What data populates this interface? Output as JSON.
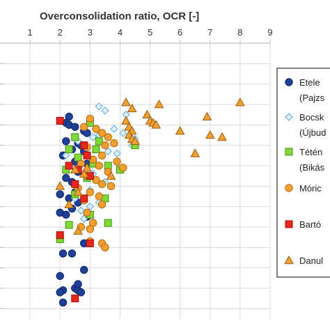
{
  "chart_data": {
    "type": "scatter",
    "title": "",
    "xlabel": "Overconsolidation ratio, OCR [-]",
    "x_axis_position": "top",
    "xlim": [
      0,
      9
    ],
    "xticks": [
      "1",
      "2",
      "3",
      "4",
      "5",
      "6",
      "7",
      "8",
      "9"
    ],
    "ylabel": "",
    "grid": true,
    "legend_position": "right",
    "colors": {
      "grid": "#d9d9d9",
      "axis": "#bfbfbf",
      "legend_border": "#000000"
    },
    "series": [
      {
        "name": "Etele (Pajzs...",
        "marker": "circle",
        "color": "#1f3f99",
        "edge": "#0e2466",
        "points": [
          [
            2.3,
            3.6
          ],
          [
            2.2,
            3.9
          ],
          [
            2.3,
            4.0
          ],
          [
            2.5,
            4.1
          ],
          [
            2.8,
            4.3
          ],
          [
            2.9,
            4.4
          ],
          [
            2.2,
            4.8
          ],
          [
            2.6,
            4.9
          ],
          [
            2.7,
            5.0
          ],
          [
            2.4,
            5.2
          ],
          [
            2.8,
            5.3
          ],
          [
            2.1,
            5.5
          ],
          [
            2.5,
            5.8
          ],
          [
            2.9,
            5.9
          ],
          [
            2.6,
            6.3
          ],
          [
            2.2,
            6.6
          ],
          [
            2.4,
            6.8
          ],
          [
            2.5,
            7.3
          ],
          [
            2.0,
            7.4
          ],
          [
            2.3,
            7.6
          ],
          [
            2.6,
            7.8
          ],
          [
            2.4,
            8.1
          ],
          [
            2.0,
            8.3
          ],
          [
            2.2,
            8.4
          ],
          [
            2.9,
            8.5
          ],
          [
            2.8,
            9.8
          ],
          [
            2.4,
            10.3
          ],
          [
            2.1,
            10.3
          ],
          [
            2.0,
            11.4
          ],
          [
            2.8,
            11.1
          ],
          [
            2.1,
            12.1
          ],
          [
            2.5,
            12.0
          ],
          [
            2.6,
            12.1
          ],
          [
            2.0,
            12.2
          ],
          [
            2.1,
            12.7
          ],
          [
            2.7,
            12.2
          ],
          [
            2.6,
            11.8
          ]
        ]
      },
      {
        "name": "Bocsk... (Újbuda...",
        "marker": "diamond",
        "color": "#dceffb",
        "edge": "#5aa9d6",
        "points": [
          [
            3.3,
            3.1
          ],
          [
            3.5,
            3.3
          ],
          [
            4.2,
            3.5
          ],
          [
            3.8,
            4.2
          ],
          [
            3.3,
            4.5
          ],
          [
            3.1,
            4.6
          ],
          [
            2.6,
            4.8
          ],
          [
            2.9,
            5.1
          ],
          [
            3.6,
            5.3
          ],
          [
            3.9,
            5.4
          ],
          [
            4.4,
            5.0
          ],
          [
            2.2,
            5.5
          ],
          [
            3.1,
            6.4
          ],
          [
            3.5,
            6.8
          ],
          [
            3.0,
            7.2
          ],
          [
            2.5,
            7.6
          ],
          [
            3.3,
            7.8
          ],
          [
            3.0,
            8.0
          ],
          [
            2.7,
            8.2
          ],
          [
            2.8,
            8.6
          ],
          [
            4.1,
            4.4
          ],
          [
            4.5,
            4.7
          ]
        ]
      },
      {
        "name": "Tétén... (Bikás...",
        "marker": "square",
        "color": "#80d935",
        "edge": "#3e8f12",
        "points": [
          [
            3.0,
            3.9
          ],
          [
            2.5,
            4.6
          ],
          [
            3.3,
            4.8
          ],
          [
            4.5,
            5.0
          ],
          [
            2.3,
            5.2
          ],
          [
            2.6,
            5.6
          ],
          [
            3.1,
            5.9
          ],
          [
            3.6,
            6.0
          ],
          [
            2.2,
            6.2
          ],
          [
            2.9,
            6.6
          ],
          [
            2.5,
            7.4
          ],
          [
            3.5,
            7.6
          ],
          [
            4.0,
            6.2
          ],
          [
            3.0,
            8.4
          ],
          [
            3.6,
            8.8
          ],
          [
            2.3,
            8.9
          ],
          [
            2.0,
            9.6
          ],
          [
            3.2,
            5.2
          ]
        ]
      },
      {
        "name": "Móric...",
        "marker": "circle",
        "color": "#f0a030",
        "edge": "#b86a0d",
        "points": [
          [
            3.0,
            3.7
          ],
          [
            2.8,
            4.1
          ],
          [
            3.2,
            4.2
          ],
          [
            3.4,
            4.4
          ],
          [
            3.6,
            4.6
          ],
          [
            3.5,
            5.0
          ],
          [
            2.9,
            5.1
          ],
          [
            3.8,
            4.9
          ],
          [
            3.4,
            5.5
          ],
          [
            3.1,
            5.7
          ],
          [
            2.7,
            5.9
          ],
          [
            3.9,
            5.8
          ],
          [
            3.3,
            6.0
          ],
          [
            4.1,
            6.1
          ],
          [
            3.6,
            6.3
          ],
          [
            2.9,
            6.5
          ],
          [
            3.2,
            6.7
          ],
          [
            3.4,
            6.9
          ],
          [
            2.6,
            7.1
          ],
          [
            3.7,
            7.0
          ],
          [
            3.0,
            7.3
          ],
          [
            3.3,
            7.5
          ],
          [
            2.8,
            7.7
          ],
          [
            3.4,
            7.9
          ],
          [
            2.9,
            8.3
          ],
          [
            3.1,
            8.8
          ],
          [
            2.7,
            9.0
          ],
          [
            3.0,
            9.1
          ],
          [
            3.0,
            9.7
          ],
          [
            3.4,
            9.8
          ],
          [
            3.5,
            10.0
          ]
        ]
      },
      {
        "name": "Bartó...",
        "marker": "square",
        "color": "#e8261c",
        "edge": "#9e0f08",
        "points": [
          [
            2.0,
            3.8
          ],
          [
            2.8,
            5.0
          ],
          [
            2.9,
            5.5
          ],
          [
            2.3,
            6.0
          ],
          [
            2.6,
            6.2
          ],
          [
            3.0,
            6.5
          ],
          [
            2.5,
            6.9
          ],
          [
            2.8,
            7.6
          ],
          [
            2.0,
            9.4
          ],
          [
            3.0,
            9.8
          ],
          [
            2.5,
            12.5
          ]
        ]
      },
      {
        "name": "Danul...",
        "marker": "triangle",
        "color": "#f0a030",
        "edge": "#9c5a10",
        "points": [
          [
            4.2,
            2.9
          ],
          [
            5.3,
            3.0
          ],
          [
            8.0,
            2.9
          ],
          [
            4.4,
            3.2
          ],
          [
            4.9,
            3.5
          ],
          [
            6.9,
            3.6
          ],
          [
            4.2,
            3.8
          ],
          [
            5.0,
            3.8
          ],
          [
            5.1,
            3.9
          ],
          [
            5.2,
            4.0
          ],
          [
            4.3,
            4.1
          ],
          [
            4.4,
            4.3
          ],
          [
            6.0,
            4.3
          ],
          [
            7.0,
            4.5
          ],
          [
            7.4,
            4.6
          ],
          [
            4.3,
            4.5
          ],
          [
            4.4,
            4.7
          ],
          [
            4.5,
            4.8
          ],
          [
            2.5,
            6.2
          ],
          [
            2.8,
            6.4
          ],
          [
            2.9,
            6.1
          ],
          [
            2.0,
            7.0
          ],
          [
            2.6,
            7.3
          ],
          [
            2.3,
            7.9
          ],
          [
            2.6,
            9.2
          ],
          [
            6.5,
            5.4
          ],
          [
            3.7,
            6.5
          ]
        ]
      }
    ]
  },
  "legend": {
    "entries": [
      {
        "marker": "circle",
        "color": "#1f3f99",
        "edge": "#0e2466",
        "lines": [
          "Etele",
          "(Pajzs"
        ]
      },
      {
        "marker": "diamond",
        "color": "#dceffb",
        "edge": "#5aa9d6",
        "lines": [
          "Bocsk",
          "(Újbud"
        ]
      },
      {
        "marker": "square",
        "color": "#80d935",
        "edge": "#3e8f12",
        "lines": [
          "Tétén",
          "(Bikás"
        ]
      },
      {
        "marker": "circle",
        "color": "#f0a030",
        "edge": "#b86a0d",
        "lines": [
          "Móric"
        ]
      },
      {
        "marker": "square",
        "color": "#e8261c",
        "edge": "#9e0f08",
        "lines": [
          "Bartó"
        ]
      },
      {
        "marker": "triangle",
        "color": "#f0a030",
        "edge": "#9c5a10",
        "lines": [
          "Danul"
        ]
      }
    ]
  }
}
